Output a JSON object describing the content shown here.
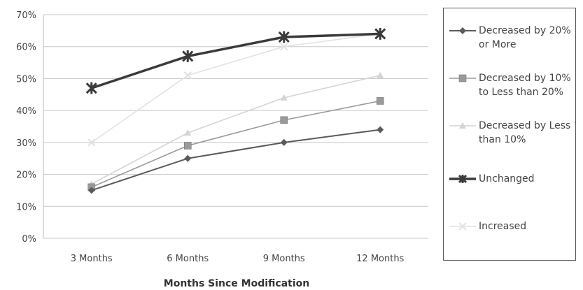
{
  "chart_data": {
    "type": "line",
    "title": "",
    "xlabel": "Months Since Modification",
    "ylabel": "",
    "categories": [
      "3 Months",
      "6 Months",
      "9 Months",
      "12 Months"
    ],
    "ylim": [
      0,
      70
    ],
    "yticks": [
      "0%",
      "10%",
      "20%",
      "30%",
      "40%",
      "50%",
      "60%",
      "70%"
    ],
    "grid": true,
    "legend_position": "right",
    "series": [
      {
        "name": "Decreased by 20% or More",
        "values": [
          15,
          25,
          30,
          34
        ],
        "color": "#5a5a5a",
        "marker": "diamond"
      },
      {
        "name": "Decreased by 10% to Less than 20%",
        "values": [
          16,
          29,
          37,
          43
        ],
        "color": "#9a9a9a",
        "marker": "square"
      },
      {
        "name": "Decreased by Less than 10%",
        "values": [
          17,
          33,
          44,
          51
        ],
        "color": "#d4d4d4",
        "marker": "triangle"
      },
      {
        "name": "Unchanged",
        "values": [
          47,
          57,
          63,
          64
        ],
        "color": "#3a3a3a",
        "marker": "star"
      },
      {
        "name": "Increased",
        "values": [
          30,
          51,
          60,
          64
        ],
        "color": "#e2e2e2",
        "marker": "x"
      }
    ]
  }
}
